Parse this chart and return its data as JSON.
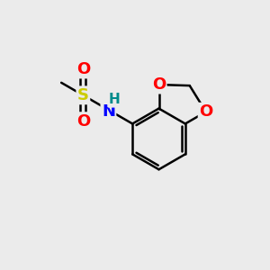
{
  "bg_color": "#ebebeb",
  "bond_color": "#000000",
  "bond_width": 1.8,
  "dbo": 0.055,
  "atom_colors": {
    "S": "#cccc00",
    "O": "#ff0000",
    "N": "#0000ff",
    "H": "#008b8b",
    "C": "#000000"
  },
  "font_size": 13
}
